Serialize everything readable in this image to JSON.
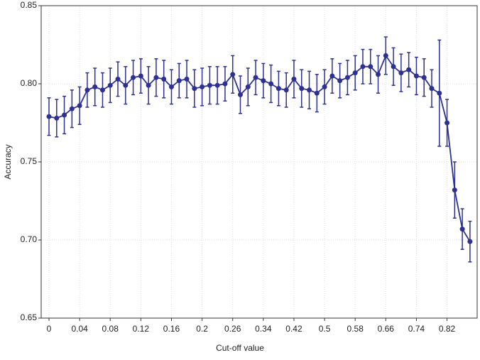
{
  "chart_data": {
    "type": "line",
    "x_label": "Cut-off value",
    "y_label": "Accuracy",
    "categories": [
      "0",
      null,
      null,
      null,
      "0.04",
      null,
      null,
      null,
      "0.08",
      null,
      null,
      null,
      "0.12",
      null,
      null,
      null,
      "0.16",
      null,
      null,
      null,
      "0.2",
      null,
      null,
      null,
      "0.26",
      null,
      null,
      null,
      "0.34",
      null,
      null,
      null,
      "0.42",
      null,
      null,
      null,
      "0.5",
      null,
      null,
      null,
      "0.58",
      null,
      null,
      null,
      "0.66",
      null,
      null,
      null,
      "0.74",
      null,
      null,
      null,
      "0.82",
      null,
      null,
      null
    ],
    "series": [
      {
        "color": "#2e3192",
        "values": [
          0.779,
          0.778,
          0.78,
          0.784,
          0.786,
          0.796,
          0.798,
          0.796,
          0.799,
          0.803,
          0.799,
          0.804,
          0.805,
          0.799,
          0.804,
          0.803,
          0.798,
          0.802,
          0.803,
          0.797,
          0.798,
          0.799,
          0.799,
          0.8,
          0.806,
          0.793,
          0.798,
          0.804,
          0.802,
          0.8,
          0.797,
          0.796,
          0.803,
          0.797,
          0.796,
          0.794,
          0.798,
          0.805,
          0.802,
          0.804,
          0.807,
          0.811,
          0.811,
          0.806,
          0.818,
          0.811,
          0.807,
          0.809,
          0.805,
          0.804,
          0.797,
          0.794,
          0.775,
          0.732,
          0.707,
          0.699
        ],
        "errors": [
          0.012,
          0.012,
          0.012,
          0.012,
          0.012,
          0.011,
          0.012,
          0.011,
          0.011,
          0.011,
          0.012,
          0.011,
          0.011,
          0.012,
          0.012,
          0.012,
          0.011,
          0.011,
          0.012,
          0.012,
          0.012,
          0.012,
          0.012,
          0.011,
          0.012,
          0.012,
          0.012,
          0.011,
          0.011,
          0.012,
          0.011,
          0.011,
          0.012,
          0.012,
          0.012,
          0.012,
          0.011,
          0.011,
          0.011,
          0.011,
          0.011,
          0.011,
          0.011,
          0.012,
          0.012,
          0.012,
          0.012,
          0.011,
          0.012,
          0.012,
          0.012,
          0.034,
          0.015,
          0.018,
          0.013,
          0.013
        ]
      }
    ],
    "ylim": [
      0.65,
      0.85
    ],
    "yticks": [
      0.65,
      {
        "value": 0.7,
        "label": "0.70"
      },
      0.75,
      {
        "value": 0.8,
        "label": "0.80"
      },
      0.85
    ],
    "grid": true
  }
}
